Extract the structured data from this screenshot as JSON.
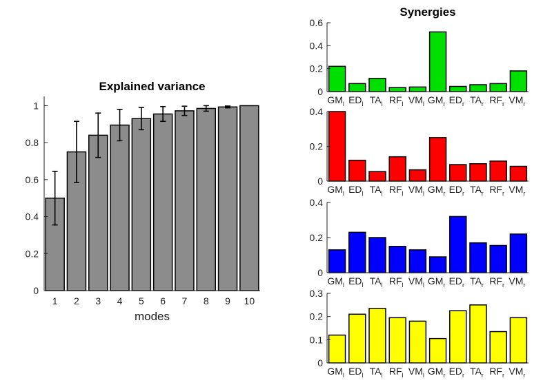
{
  "chart_data": [
    {
      "type": "bar",
      "title": "Explained variance",
      "xlabel": "modes",
      "ylabel": "",
      "ylim": [
        0,
        1.05
      ],
      "yticks": [
        "0",
        "0.2",
        "0.4",
        "0.6",
        "0.8",
        "1"
      ],
      "categories": [
        "1",
        "2",
        "3",
        "4",
        "5",
        "6",
        "7",
        "8",
        "9",
        "10"
      ],
      "values": [
        0.5,
        0.75,
        0.84,
        0.895,
        0.93,
        0.955,
        0.972,
        0.985,
        0.993,
        1.0
      ],
      "errors": [
        0.145,
        0.165,
        0.12,
        0.085,
        0.06,
        0.04,
        0.025,
        0.015,
        0.005,
        0.0
      ],
      "bar_color": "#8c8c8c"
    },
    {
      "type": "bar",
      "title": "Synergies",
      "ylim": [
        0,
        0.6
      ],
      "yticks": [
        "0",
        "0.2",
        "0.4",
        "0.6"
      ],
      "categories": [
        {
          "name": "GM",
          "sub": "l"
        },
        {
          "name": "ED",
          "sub": "l"
        },
        {
          "name": "TA",
          "sub": "l"
        },
        {
          "name": "RF",
          "sub": "l"
        },
        {
          "name": "VM",
          "sub": "l"
        },
        {
          "name": "GM",
          "sub": "r"
        },
        {
          "name": "ED",
          "sub": "r"
        },
        {
          "name": "TA",
          "sub": "r"
        },
        {
          "name": "RF",
          "sub": "r"
        },
        {
          "name": "VM",
          "sub": "r"
        }
      ],
      "values": [
        0.22,
        0.07,
        0.115,
        0.035,
        0.04,
        0.52,
        0.045,
        0.06,
        0.07,
        0.18
      ],
      "bar_color": "#00e000"
    },
    {
      "type": "bar",
      "title": "",
      "ylim": [
        0,
        0.4
      ],
      "yticks": [
        "0",
        "0.2",
        "0.4"
      ],
      "categories": [
        {
          "name": "GM",
          "sub": "l"
        },
        {
          "name": "ED",
          "sub": "l"
        },
        {
          "name": "TA",
          "sub": "l"
        },
        {
          "name": "RF",
          "sub": "l"
        },
        {
          "name": "VM",
          "sub": "l"
        },
        {
          "name": "GM",
          "sub": "r"
        },
        {
          "name": "ED",
          "sub": "r"
        },
        {
          "name": "TA",
          "sub": "r"
        },
        {
          "name": "RF",
          "sub": "r"
        },
        {
          "name": "VM",
          "sub": "r"
        }
      ],
      "values": [
        0.4,
        0.12,
        0.055,
        0.14,
        0.065,
        0.25,
        0.095,
        0.1,
        0.115,
        0.085
      ],
      "bar_color": "#ff0000"
    },
    {
      "type": "bar",
      "title": "",
      "ylim": [
        0,
        0.4
      ],
      "yticks": [
        "0",
        "0.2",
        "0.4"
      ],
      "categories": [
        {
          "name": "GM",
          "sub": "l"
        },
        {
          "name": "ED",
          "sub": "l"
        },
        {
          "name": "TA",
          "sub": "l"
        },
        {
          "name": "RF",
          "sub": "l"
        },
        {
          "name": "VM",
          "sub": "l"
        },
        {
          "name": "GM",
          "sub": "r"
        },
        {
          "name": "ED",
          "sub": "r"
        },
        {
          "name": "TA",
          "sub": "r"
        },
        {
          "name": "RF",
          "sub": "r"
        },
        {
          "name": "VM",
          "sub": "r"
        }
      ],
      "values": [
        0.13,
        0.23,
        0.2,
        0.15,
        0.13,
        0.09,
        0.32,
        0.17,
        0.155,
        0.22
      ],
      "bar_color": "#0000ff"
    },
    {
      "type": "bar",
      "title": "",
      "ylim": [
        0,
        0.3
      ],
      "yticks": [
        "0",
        "0.1",
        "0.2",
        "0.3"
      ],
      "categories": [
        {
          "name": "GM",
          "sub": "l"
        },
        {
          "name": "ED",
          "sub": "l"
        },
        {
          "name": "TA",
          "sub": "l"
        },
        {
          "name": "RF",
          "sub": "l"
        },
        {
          "name": "VM",
          "sub": "l"
        },
        {
          "name": "GM",
          "sub": "r"
        },
        {
          "name": "ED",
          "sub": "r"
        },
        {
          "name": "TA",
          "sub": "r"
        },
        {
          "name": "RF",
          "sub": "r"
        },
        {
          "name": "VM",
          "sub": "r"
        }
      ],
      "values": [
        0.12,
        0.21,
        0.235,
        0.195,
        0.18,
        0.105,
        0.225,
        0.25,
        0.135,
        0.195
      ],
      "bar_color": "#ffff00"
    }
  ]
}
